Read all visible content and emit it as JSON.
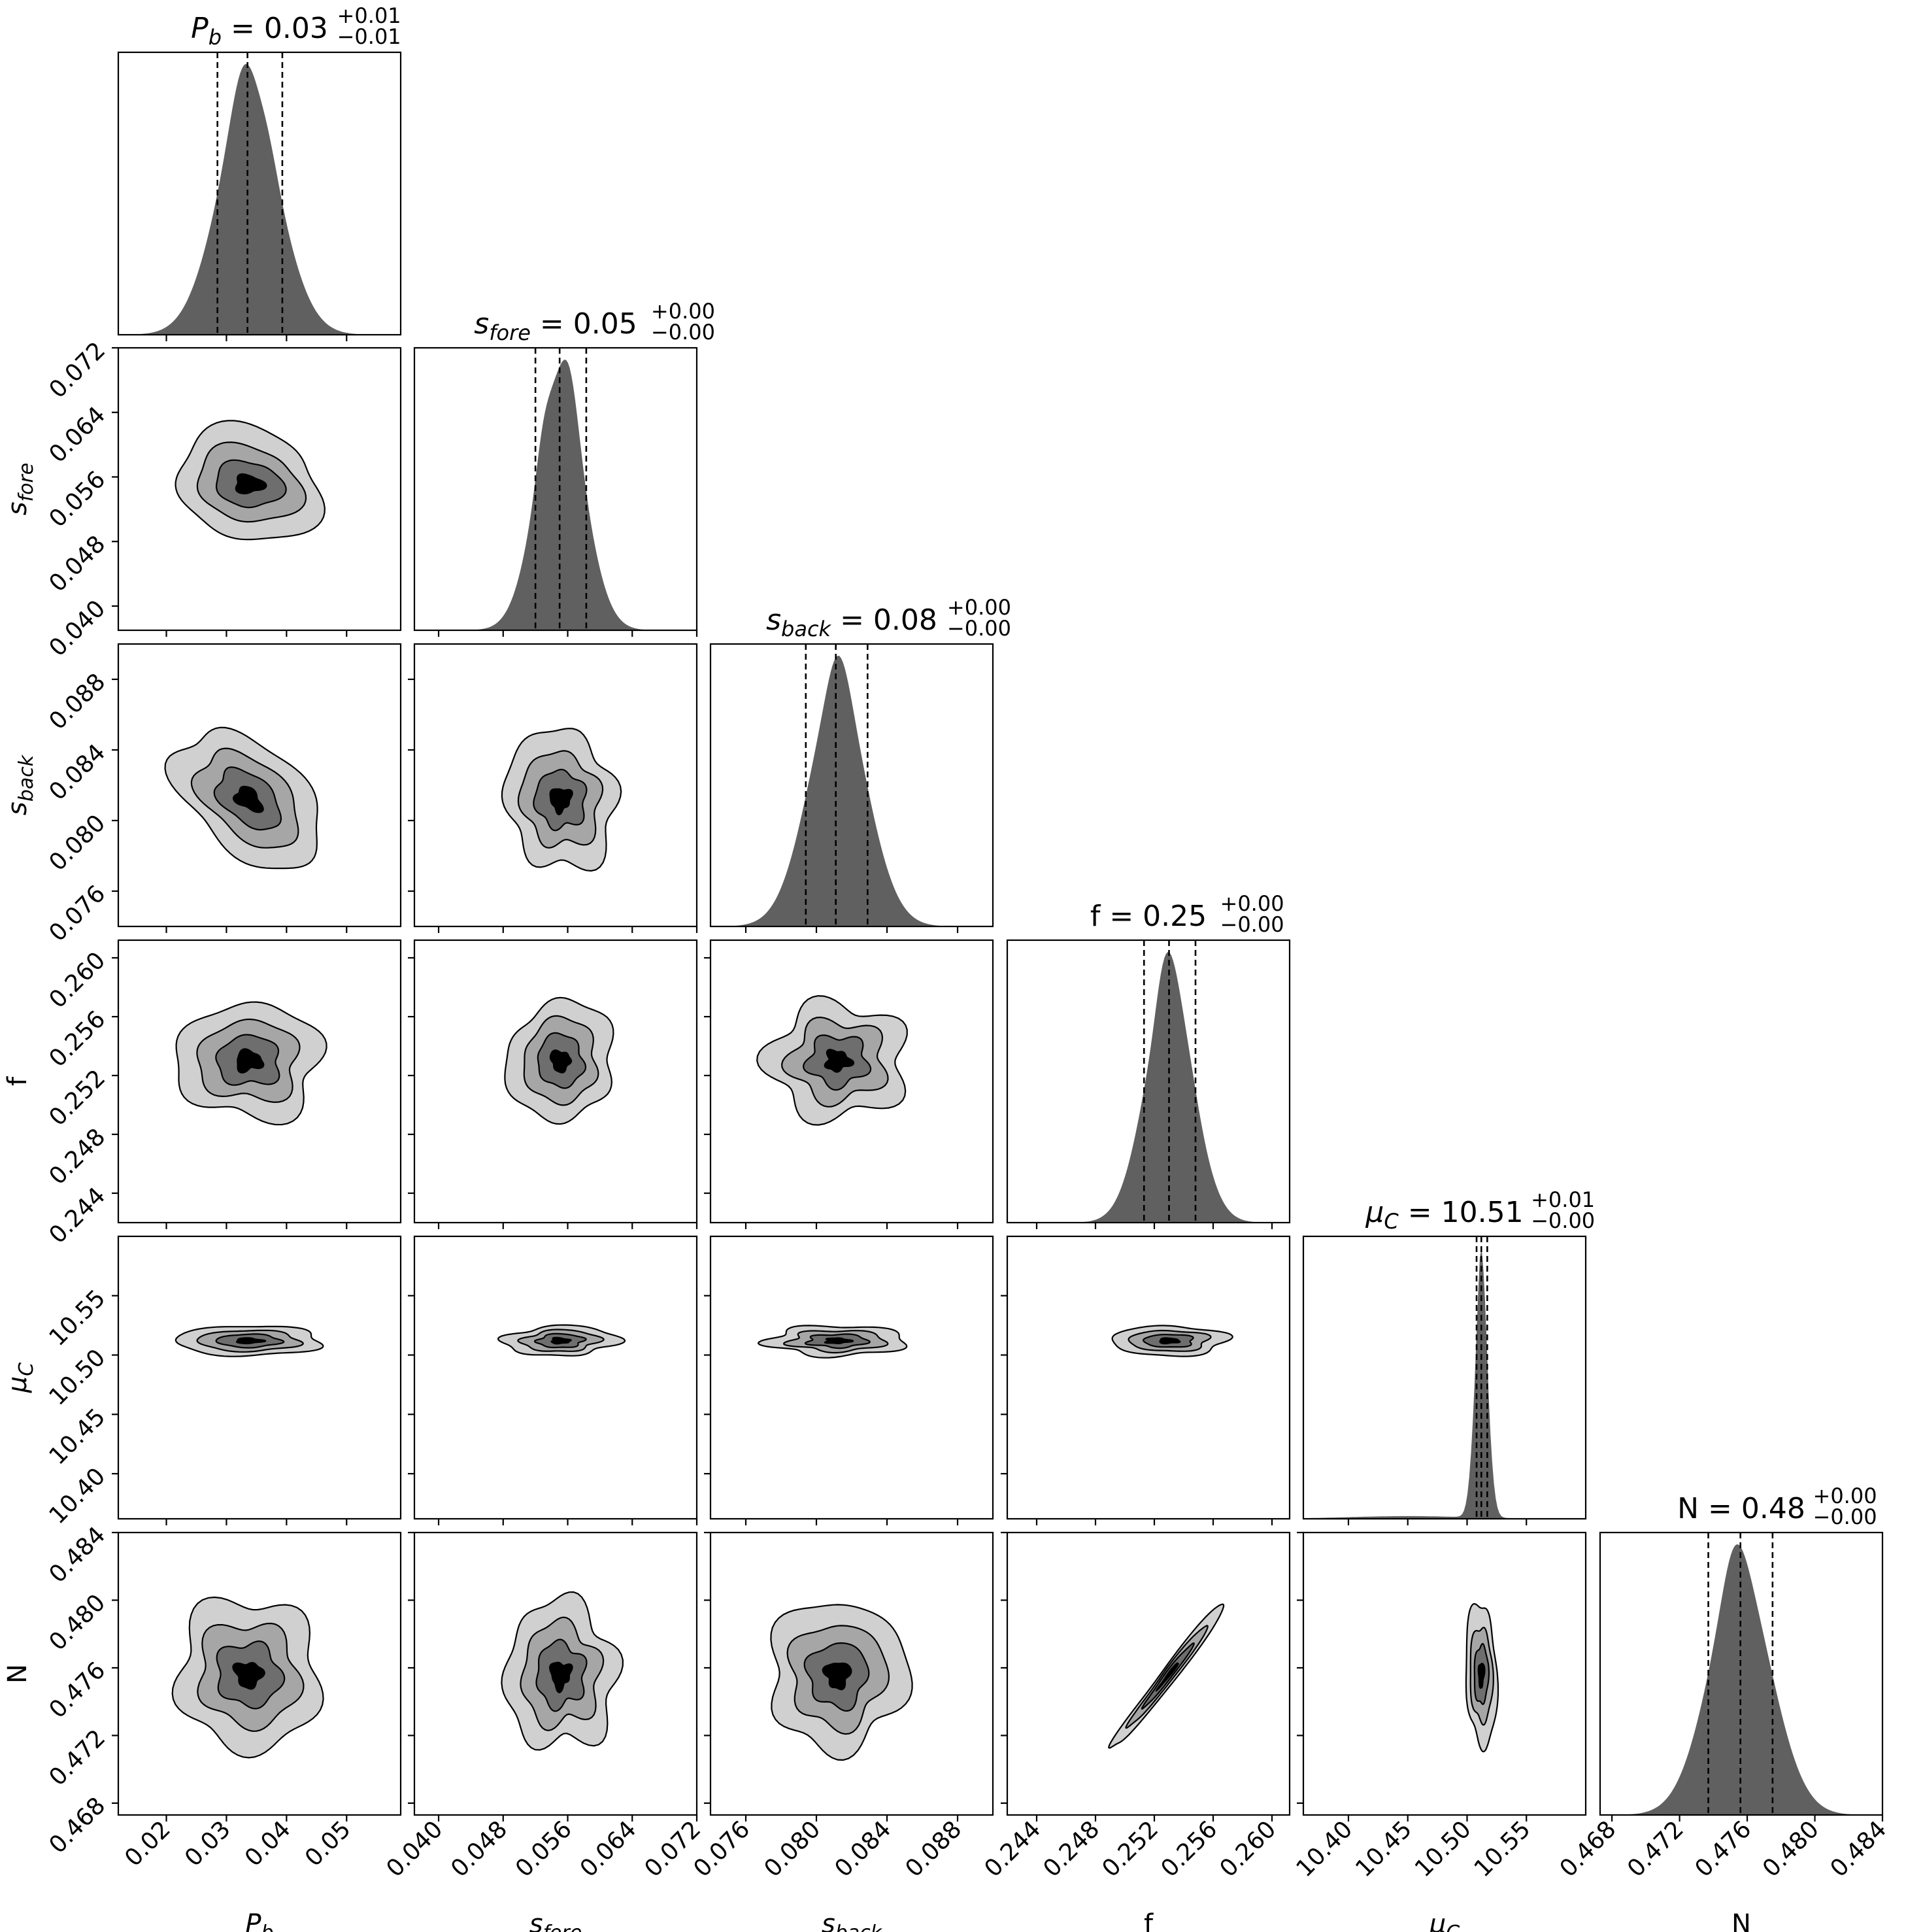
{
  "chart_data": {
    "type": "corner",
    "parameters": [
      {
        "key": "Pb",
        "symbol": "P",
        "sub": "b",
        "axis_label": "P_b",
        "title": {
          "value": "0.03",
          "plus": "+0.01",
          "minus": "−0.01"
        },
        "range": [
          0.012,
          0.059
        ],
        "ticks": [
          0.02,
          0.03,
          0.04,
          0.05
        ],
        "tick_labels": [
          "0.02",
          "0.03",
          "0.04",
          "0.05"
        ],
        "quantiles": [
          0.0285,
          0.0335,
          0.0393
        ],
        "histogram": {
          "mean": 0.0337,
          "sd": 0.0053,
          "peak_at": 0.0333
        }
      },
      {
        "key": "sfore",
        "symbol": "s",
        "sub": "fore",
        "axis_label": "s_fore",
        "title": {
          "value": "0.05",
          "plus": "+0.00",
          "minus": "−0.00"
        },
        "range": [
          0.037,
          0.072
        ],
        "ticks": [
          0.04,
          0.048,
          0.056,
          0.064,
          0.072
        ],
        "tick_labels": [
          "0.040",
          "0.048",
          "0.056",
          "0.064",
          "0.072"
        ],
        "quantiles": [
          0.052,
          0.055,
          0.0583
        ],
        "histogram": {
          "mean": 0.0551,
          "sd": 0.003,
          "peak_at": 0.0563
        }
      },
      {
        "key": "sback",
        "symbol": "s",
        "sub": "back",
        "axis_label": "s_back",
        "title": {
          "value": "0.08",
          "plus": "+0.00",
          "minus": "−0.00"
        },
        "range": [
          0.074,
          0.09
        ],
        "ticks": [
          0.076,
          0.08,
          0.084,
          0.088
        ],
        "tick_labels": [
          "0.076",
          "0.080",
          "0.084",
          "0.088"
        ],
        "quantiles": [
          0.0794,
          0.0811,
          0.0829
        ],
        "histogram": {
          "mean": 0.0812,
          "sd": 0.0017,
          "peak_at": 0.0812
        }
      },
      {
        "key": "f",
        "symbol": "f",
        "sub": "",
        "axis_label": "f",
        "title": {
          "value": "0.25",
          "plus": "+0.00",
          "minus": "−0.00"
        },
        "range": [
          0.242,
          0.2612
        ],
        "ticks": [
          0.244,
          0.248,
          0.252,
          0.256,
          0.26
        ],
        "tick_labels": [
          "0.244",
          "0.248",
          "0.252",
          "0.256",
          "0.260"
        ],
        "quantiles": [
          0.2513,
          0.253,
          0.2548
        ],
        "histogram": {
          "mean": 0.253,
          "sd": 0.0017,
          "peak_at": 0.253
        }
      },
      {
        "key": "muC",
        "symbol": "μ",
        "sub": "C",
        "axis_label": "μ_C",
        "title": {
          "value": "10.51",
          "plus": "+0.01",
          "minus": "−0.00"
        },
        "range": [
          10.362,
          10.6
        ],
        "ticks": [
          10.4,
          10.45,
          10.5,
          10.55
        ],
        "tick_labels": [
          "10.40",
          "10.45",
          "10.50",
          "10.55"
        ],
        "quantiles": [
          10.508,
          10.512,
          10.517
        ],
        "histogram": {
          "mean": 10.512,
          "sd": 0.0055,
          "peak_at": 10.512
        }
      },
      {
        "key": "N",
        "symbol": "N",
        "sub": "",
        "axis_label": "N",
        "title": {
          "value": "0.48",
          "plus": "+0.00",
          "minus": "−0.00"
        },
        "range": [
          0.4673,
          0.484
        ],
        "ticks": [
          0.468,
          0.472,
          0.476,
          0.48,
          0.484
        ],
        "tick_labels": [
          "0.468",
          "0.472",
          "0.476",
          "0.480",
          "0.484"
        ],
        "quantiles": [
          0.4737,
          0.4756,
          0.4775
        ],
        "histogram": {
          "mean": 0.4756,
          "sd": 0.0019,
          "peak_at": 0.4752
        }
      }
    ],
    "contour_fill_colors": [
      "#d0d0d0",
      "#a6a6a6",
      "#6e6e6e",
      "#000000"
    ],
    "histogram_fill_color": "#606060",
    "dashed_lines": "16th, 50th and 84th percentiles",
    "pairs": [
      {
        "x": "Pb",
        "y": "sfore",
        "center": [
          0.0337,
          0.0551
        ],
        "sd": [
          0.0053,
          0.003
        ],
        "corr": -0.05
      },
      {
        "x": "Pb",
        "y": "sback",
        "center": [
          0.0337,
          0.0812
        ],
        "sd": [
          0.0053,
          0.0017
        ],
        "corr": -0.45
      },
      {
        "x": "sfore",
        "y": "sback",
        "center": [
          0.0551,
          0.0812
        ],
        "sd": [
          0.003,
          0.0017
        ],
        "corr": 0.0
      },
      {
        "x": "Pb",
        "y": "f",
        "center": [
          0.0337,
          0.253
        ],
        "sd": [
          0.0053,
          0.0017
        ],
        "corr": 0.0
      },
      {
        "x": "sfore",
        "y": "f",
        "center": [
          0.0551,
          0.253
        ],
        "sd": [
          0.003,
          0.0017
        ],
        "corr": 0.0
      },
      {
        "x": "sback",
        "y": "f",
        "center": [
          0.0812,
          0.253
        ],
        "sd": [
          0.0017,
          0.0017
        ],
        "corr": 0.0
      },
      {
        "x": "Pb",
        "y": "muC",
        "center": [
          0.0337,
          10.512
        ],
        "sd": [
          0.0053,
          0.0055
        ],
        "corr": 0.0
      },
      {
        "x": "sfore",
        "y": "muC",
        "center": [
          0.0551,
          10.512
        ],
        "sd": [
          0.003,
          0.0055
        ],
        "corr": 0.0
      },
      {
        "x": "sback",
        "y": "muC",
        "center": [
          0.0812,
          10.512
        ],
        "sd": [
          0.0017,
          0.0055
        ],
        "corr": 0.0
      },
      {
        "x": "f",
        "y": "muC",
        "center": [
          0.253,
          10.512
        ],
        "sd": [
          0.0017,
          0.0055
        ],
        "corr": 0.0
      },
      {
        "x": "Pb",
        "y": "N",
        "center": [
          0.0337,
          0.4756
        ],
        "sd": [
          0.0053,
          0.0019
        ],
        "corr": 0.0
      },
      {
        "x": "sfore",
        "y": "N",
        "center": [
          0.0551,
          0.4756
        ],
        "sd": [
          0.003,
          0.0019
        ],
        "corr": 0.0
      },
      {
        "x": "sback",
        "y": "N",
        "center": [
          0.0812,
          0.4756
        ],
        "sd": [
          0.0017,
          0.0019
        ],
        "corr": 0.0
      },
      {
        "x": "f",
        "y": "N",
        "center": [
          0.253,
          0.4756
        ],
        "sd": [
          0.0017,
          0.0019
        ],
        "corr": 0.985
      },
      {
        "x": "muC",
        "y": "N",
        "center": [
          10.512,
          0.4756
        ],
        "sd": [
          0.0055,
          0.0019
        ],
        "corr": 0.0
      }
    ],
    "grid": false,
    "legend": "none"
  }
}
